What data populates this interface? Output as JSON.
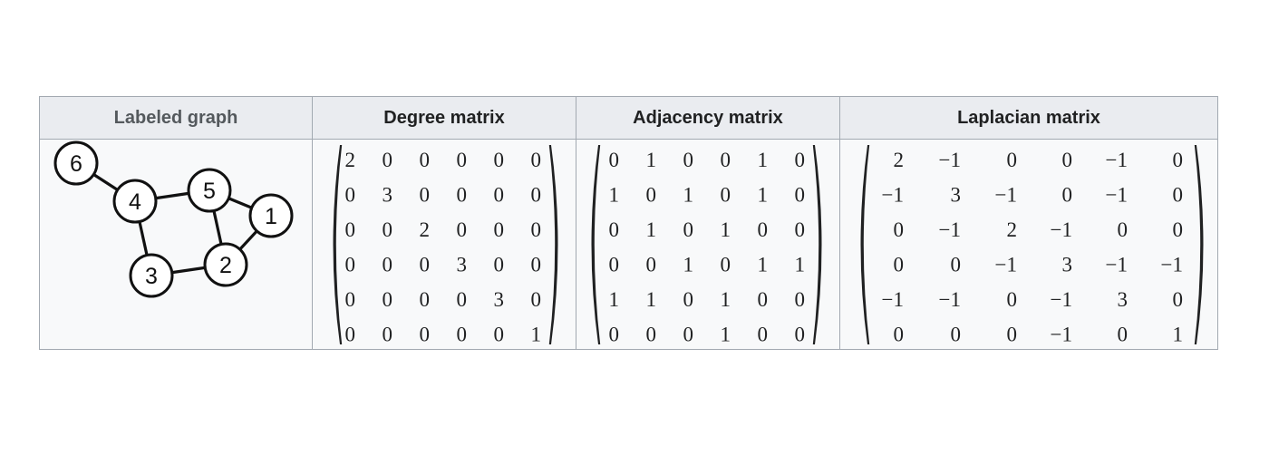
{
  "headers": [
    "Labeled graph",
    "Degree matrix",
    "Adjacency matrix",
    "Laplacian matrix"
  ],
  "graph": {
    "nodes": [
      "6",
      "4",
      "5",
      "1",
      "3",
      "2"
    ],
    "edges": [
      [
        "6",
        "4"
      ],
      [
        "4",
        "5"
      ],
      [
        "4",
        "3"
      ],
      [
        "5",
        "1"
      ],
      [
        "5",
        "2"
      ],
      [
        "1",
        "2"
      ],
      [
        "3",
        "2"
      ]
    ]
  },
  "degree_matrix": [
    [
      "2",
      "0",
      "0",
      "0",
      "0",
      "0"
    ],
    [
      "0",
      "3",
      "0",
      "0",
      "0",
      "0"
    ],
    [
      "0",
      "0",
      "2",
      "0",
      "0",
      "0"
    ],
    [
      "0",
      "0",
      "0",
      "3",
      "0",
      "0"
    ],
    [
      "0",
      "0",
      "0",
      "0",
      "3",
      "0"
    ],
    [
      "0",
      "0",
      "0",
      "0",
      "0",
      "1"
    ]
  ],
  "adjacency_matrix": [
    [
      "0",
      "1",
      "0",
      "0",
      "1",
      "0"
    ],
    [
      "1",
      "0",
      "1",
      "0",
      "1",
      "0"
    ],
    [
      "0",
      "1",
      "0",
      "1",
      "0",
      "0"
    ],
    [
      "0",
      "0",
      "1",
      "0",
      "1",
      "1"
    ],
    [
      "1",
      "1",
      "0",
      "1",
      "0",
      "0"
    ],
    [
      "0",
      "0",
      "0",
      "1",
      "0",
      "0"
    ]
  ],
  "laplacian_matrix": [
    [
      "2",
      "−1",
      "0",
      "0",
      "−1",
      "0"
    ],
    [
      "−1",
      "3",
      "−1",
      "0",
      "−1",
      "0"
    ],
    [
      "0",
      "−1",
      "2",
      "−1",
      "0",
      "0"
    ],
    [
      "0",
      "0",
      "−1",
      "3",
      "−1",
      "−1"
    ],
    [
      "−1",
      "−1",
      "0",
      "−1",
      "3",
      "0"
    ],
    [
      "0",
      "0",
      "0",
      "−1",
      "0",
      "1"
    ]
  ],
  "colors": {
    "header_bg": "#eaecf0",
    "cell_bg": "#f8f9fa",
    "border": "#a2a9b1"
  }
}
